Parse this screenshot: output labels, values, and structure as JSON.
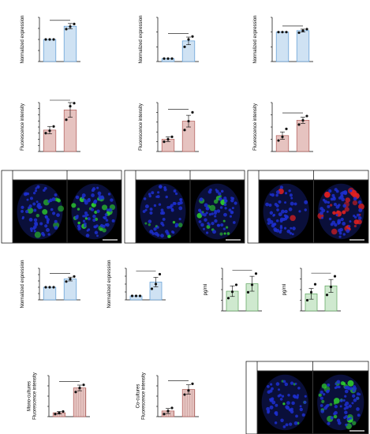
{
  "colors": {
    "blue_fill": "#cfe2f3",
    "blue_edge": "#5b9bd5",
    "pink_fill": "#e6c3c0",
    "pink_edge": "#b05a56",
    "green_fill": "#cfe9cf",
    "green_edge": "#5aa05a",
    "stripe": "#c9a8a6",
    "nucleus": "#1d2fd0",
    "green_stain": "#2ecc2e",
    "red_stain": "#e02020",
    "green_label": "#2aa52a",
    "red_label": "#e02020"
  },
  "chart_data": [
    {
      "id": "A",
      "letter": "A",
      "type": "bar",
      "title": "COL1A1",
      "title_italic": true,
      "categories": [
        "Control",
        "TGF-β1"
      ],
      "values": [
        1.0,
        1.6
      ],
      "errors": [
        0.0,
        0.12
      ],
      "points": [
        [
          1.0,
          1.0,
          1.0
        ],
        [
          1.47,
          1.58,
          1.7
        ]
      ],
      "ylabel": "Normalized expression",
      "ylim": [
        0,
        2.0
      ],
      "yticks": [
        "0.0",
        "0.5",
        "1.0",
        "1.5",
        "2.0"
      ],
      "sig": "*",
      "fill": "blue_fill",
      "edge": "blue_edge"
    },
    {
      "id": "B",
      "letter": "B",
      "type": "bar",
      "title": "TGFB1",
      "title_italic": true,
      "categories": [
        "Control",
        "TGF-β1"
      ],
      "values": [
        1.0,
        7.0
      ],
      "errors": [
        0.0,
        1.3
      ],
      "points": [
        [
          1.0,
          1.0,
          1.0
        ],
        [
          5.0,
          7.5,
          8.5
        ]
      ],
      "ylabel": "Normalized expression",
      "ylim": [
        0,
        15
      ],
      "yticks": [
        "0",
        "5",
        "10",
        "15"
      ],
      "sig": "*",
      "fill": "blue_fill",
      "edge": "blue_edge"
    },
    {
      "id": "C",
      "letter": "C",
      "type": "bar",
      "title": "ACTA2",
      "title_italic": true,
      "categories": [
        "Control",
        "TGF-β1"
      ],
      "values": [
        1.0,
        1.05
      ],
      "errors": [
        0.0,
        0.05
      ],
      "points": [
        [
          1.0,
          1.0,
          1.0
        ],
        [
          0.98,
          1.05,
          1.1
        ]
      ],
      "ylabel": "Normalized expression",
      "ylim": [
        0,
        1.5
      ],
      "yticks": [
        "0.0",
        "0.5",
        "1.0",
        "1.5"
      ],
      "sig": "ns",
      "fill": "blue_fill",
      "edge": "blue_edge"
    },
    {
      "id": "D",
      "letter": "D",
      "type": "bar",
      "title": "COL1A1",
      "title_italic": false,
      "categories": [
        "Control",
        "TGF-β1"
      ],
      "values": [
        175,
        340
      ],
      "errors": [
        30,
        60
      ],
      "points": [
        [
          150,
          170,
          205
        ],
        [
          260,
          370,
          395
        ]
      ],
      "ylabel": "Fluorescence intensity",
      "ylim": [
        0,
        400
      ],
      "yticks": [
        "0",
        "50",
        "100",
        "150",
        "200",
        "250",
        "300",
        "350",
        "400"
      ],
      "sig": "*",
      "fill": "pink_fill",
      "edge": "pink_edge"
    },
    {
      "id": "E",
      "letter": "E",
      "type": "bar",
      "title": "TGF-β1",
      "title_italic": false,
      "categories": [
        "Control",
        "TGF-β1"
      ],
      "values": [
        125,
        310
      ],
      "errors": [
        25,
        60
      ],
      "points": [
        [
          100,
          125,
          150
        ],
        [
          220,
          310,
          400
        ]
      ],
      "ylabel": "Fluorescence intensity",
      "ylim": [
        0,
        500
      ],
      "yticks": [
        "0",
        "100",
        "200",
        "300",
        "400",
        "500"
      ],
      "sig": "*",
      "fill": "pink_fill",
      "edge": "pink_edge"
    },
    {
      "id": "F",
      "letter": "F",
      "type": "bar",
      "title": "α-SMA",
      "title_italic": false,
      "categories": [
        "Control",
        "TGF-β1"
      ],
      "values": [
        130,
        255
      ],
      "errors": [
        30,
        25
      ],
      "points": [
        [
          90,
          120,
          185
        ],
        [
          220,
          255,
          290
        ]
      ],
      "ylabel": "Fluorescence intensity",
      "ylim": [
        0,
        400
      ],
      "yticks": [
        "0",
        "100",
        "200",
        "300",
        "400"
      ],
      "sig": "**",
      "fill": "pink_fill",
      "edge": "pink_edge"
    },
    {
      "id": "G",
      "letter": "G",
      "type": "bar",
      "title": "LOX",
      "title_italic": true,
      "categories": [
        "Control",
        "TGF-β1"
      ],
      "values": [
        1.0,
        1.65
      ],
      "errors": [
        0.0,
        0.15
      ],
      "points": [
        [
          1.0,
          1.0,
          1.0
        ],
        [
          1.45,
          1.65,
          1.85
        ]
      ],
      "ylabel": "Normalized expression",
      "ylim": [
        0,
        2.5
      ],
      "yticks": [
        "0.0",
        "0.5",
        "1.0",
        "1.5",
        "2.0",
        "2.5"
      ],
      "sig": "*",
      "fill": "blue_fill",
      "edge": "blue_edge"
    },
    {
      "id": "H",
      "letter": "H",
      "type": "bar",
      "title": "VIM",
      "title_italic": true,
      "categories": [
        "Control",
        "TGF-β1"
      ],
      "values": [
        1.0,
        4.5
      ],
      "errors": [
        0.0,
        1.2
      ],
      "points": [
        [
          1.0,
          1.0,
          1.0
        ],
        [
          2.8,
          4.0,
          6.5
        ]
      ],
      "ylabel": "Normalized expression",
      "ylim": [
        0,
        8
      ],
      "yticks": [
        "0",
        "2",
        "4",
        "6",
        "8"
      ],
      "sig": "*",
      "fill": "blue_fill",
      "edge": "blue_edge"
    },
    {
      "id": "I1",
      "letter": "I",
      "type": "bar",
      "title": "Pro-collagen I α1",
      "title_italic": false,
      "categories": [
        "Control",
        "TGF-β1"
      ],
      "values": [
        185,
        255
      ],
      "errors": [
        50,
        70
      ],
      "points": [
        [
          120,
          180,
          245
        ],
        [
          175,
          245,
          350
        ]
      ],
      "ylabel": "pg/ml",
      "ylim": [
        0,
        400
      ],
      "yticks": [
        "0",
        "100",
        "200",
        "300",
        "400"
      ],
      "sig": "*",
      "fill": "green_fill",
      "edge": "green_edge"
    },
    {
      "id": "I2",
      "letter": "",
      "type": "bar",
      "title": "CTGF",
      "title_italic": false,
      "categories": [
        "Control",
        "TGF-β1"
      ],
      "values": [
        32,
        47
      ],
      "errors": [
        10,
        12
      ],
      "points": [
        [
          20,
          35,
          50
        ],
        [
          30,
          45,
          65
        ]
      ],
      "ylabel": "pg/ml",
      "ylim": [
        0,
        80
      ],
      "yticks": [
        "0",
        "20",
        "40",
        "60",
        "80"
      ],
      "sig": "*",
      "fill": "green_fill",
      "edge": "green_edge"
    },
    {
      "id": "J1",
      "letter": "J",
      "type": "bar",
      "title": "CTGF",
      "title_italic": false,
      "categories": [
        "Control",
        "TGF-β1"
      ],
      "values": [
        75,
        560
      ],
      "errors": [
        25,
        55
      ],
      "points": [
        [
          50,
          75,
          100
        ],
        [
          480,
          560,
          620
        ]
      ],
      "ylabel": "Mono-cultures\nFluorescence intensity",
      "ylim": [
        0,
        800
      ],
      "yticks": [
        "0",
        "200",
        "400",
        "600",
        "800"
      ],
      "sig": "**",
      "fill": "pink_fill",
      "edge": "pink_edge",
      "hatched": true
    },
    {
      "id": "J2",
      "letter": "",
      "type": "bar",
      "title": "CTGF",
      "title_italic": false,
      "categories": [
        "Control",
        "TGF-β1"
      ],
      "values": [
        55,
        265
      ],
      "errors": [
        25,
        45
      ],
      "points": [
        [
          25,
          55,
          85
        ],
        [
          215,
          255,
          320
        ]
      ],
      "ylabel": "Co-cultures\nFluorescence intensity",
      "ylim": [
        0,
        400
      ],
      "yticks": [
        "0",
        "100",
        "200",
        "300",
        "400"
      ],
      "sig": "**",
      "fill": "pink_fill",
      "edge": "pink_edge",
      "hatched": true
    }
  ],
  "image_panels": [
    {
      "id": "img-col1a1",
      "side_label": "COL1A1",
      "side_color": "green_label",
      "headers": [
        "Control",
        "TGF-β1"
      ],
      "stain": "green_stain",
      "density": [
        0.25,
        0.55
      ]
    },
    {
      "id": "img-tgfb1",
      "side_label": "TGF-β1",
      "side_color": "green_label",
      "headers": [
        "Control",
        "TGF-β1"
      ],
      "stain": "green_stain",
      "density": [
        0.15,
        0.4
      ]
    },
    {
      "id": "img-asma",
      "side_label": "α-SMA",
      "side_color": "red_label",
      "headers": [
        "Control",
        "TGF-β1"
      ],
      "stain": "red_stain",
      "density": [
        0.05,
        0.6
      ]
    },
    {
      "id": "img-ctgf",
      "side_label": "CTGF",
      "side_color": "green_label",
      "headers": [
        "Control",
        "TGF-β1"
      ],
      "stain": "green_stain",
      "density": [
        0.12,
        0.55
      ]
    }
  ]
}
